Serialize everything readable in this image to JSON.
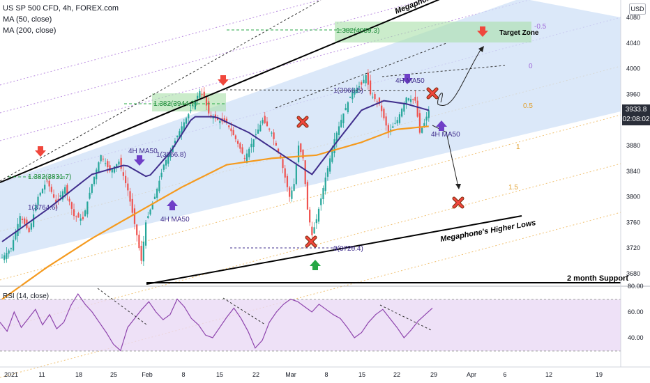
{
  "header": {
    "symbol_line": "US SP 500 CFD, 4h, FOREX.com",
    "ma50_label": "MA (50, close)",
    "ma200_label": "MA (200, close)",
    "currency": "USD"
  },
  "price_tag": {
    "price": "3933.8",
    "countdown": "02:08:02"
  },
  "colors": {
    "candle_up": "#26a69a",
    "candle_down": "#ef5350",
    "ma50": "#3f2d8c",
    "ma200": "#f59a1e",
    "channel_fill": "#cfe0f7",
    "target_zone": "#a9e0a9",
    "rsi_line": "#8e44ad",
    "rsi_band": "#ead9f5",
    "arrow_red": "#f0473c",
    "arrow_purple": "#6f3fc7",
    "arrow_green": "#27a745"
  },
  "chart_data": {
    "type": "candlestick",
    "title": "US SP 500 CFD, 4h, FOREX.com",
    "yaxis": {
      "ticks": [
        3680,
        3720,
        3760,
        3800,
        3840,
        3880,
        3920,
        3960,
        4000,
        4040,
        4080
      ],
      "range": [
        3660,
        4100
      ],
      "unit": "USD"
    },
    "xaxis": {
      "ticks": [
        "2021",
        "11",
        "18",
        "25",
        "Feb",
        "8",
        "15",
        "22",
        "Mar",
        "8",
        "15",
        "22",
        "29",
        "Apr",
        "6",
        "12",
        "19"
      ]
    },
    "price_path": [
      [
        0,
        3705
      ],
      [
        4,
        3720
      ],
      [
        8,
        3770
      ],
      [
        12,
        3745
      ],
      [
        16,
        3800
      ],
      [
        20,
        3825
      ],
      [
        24,
        3790
      ],
      [
        28,
        3815
      ],
      [
        32,
        3770
      ],
      [
        36,
        3765
      ],
      [
        40,
        3820
      ],
      [
        44,
        3865
      ],
      [
        48,
        3840
      ],
      [
        52,
        3855
      ],
      [
        56,
        3810
      ],
      [
        60,
        3740
      ],
      [
        62,
        3700
      ],
      [
        64,
        3760
      ],
      [
        68,
        3800
      ],
      [
        72,
        3850
      ],
      [
        76,
        3880
      ],
      [
        80,
        3910
      ],
      [
        84,
        3935
      ],
      [
        88,
        3965
      ],
      [
        90,
        3955
      ],
      [
        92,
        3930
      ],
      [
        96,
        3920
      ],
      [
        100,
        3915
      ],
      [
        104,
        3890
      ],
      [
        108,
        3860
      ],
      [
        112,
        3890
      ],
      [
        116,
        3920
      ],
      [
        120,
        3900
      ],
      [
        124,
        3860
      ],
      [
        128,
        3800
      ],
      [
        130,
        3820
      ],
      [
        132,
        3880
      ],
      [
        134,
        3860
      ],
      [
        136,
        3780
      ],
      [
        138,
        3740
      ],
      [
        140,
        3765
      ],
      [
        144,
        3830
      ],
      [
        148,
        3890
      ],
      [
        152,
        3930
      ],
      [
        156,
        3965
      ],
      [
        160,
        3975
      ],
      [
        162,
        3990
      ],
      [
        164,
        3960
      ],
      [
        168,
        3945
      ],
      [
        172,
        3900
      ],
      [
        176,
        3920
      ],
      [
        180,
        3955
      ],
      [
        184,
        3950
      ],
      [
        186,
        3900
      ],
      [
        188,
        3915
      ],
      [
        190,
        3935
      ]
    ],
    "ma50": [
      [
        0,
        3730
      ],
      [
        20,
        3780
      ],
      [
        40,
        3835
      ],
      [
        55,
        3850
      ],
      [
        65,
        3830
      ],
      [
        75,
        3870
      ],
      [
        85,
        3925
      ],
      [
        95,
        3925
      ],
      [
        110,
        3900
      ],
      [
        125,
        3865
      ],
      [
        138,
        3835
      ],
      [
        150,
        3890
      ],
      [
        160,
        3935
      ],
      [
        170,
        3950
      ],
      [
        180,
        3945
      ],
      [
        190,
        3935
      ]
    ],
    "ma200": [
      [
        0,
        3640
      ],
      [
        20,
        3690
      ],
      [
        40,
        3735
      ],
      [
        60,
        3775
      ],
      [
        80,
        3815
      ],
      [
        100,
        3850
      ],
      [
        120,
        3860
      ],
      [
        140,
        3865
      ],
      [
        160,
        3885
      ],
      [
        175,
        3905
      ],
      [
        190,
        3910
      ]
    ],
    "rsi": {
      "range": [
        20,
        80
      ],
      "ticks": [
        40,
        60,
        80
      ],
      "band": [
        30,
        70
      ],
      "values": [
        52,
        45,
        60,
        48,
        55,
        62,
        50,
        58,
        47,
        52,
        65,
        74,
        66,
        60,
        52,
        44,
        35,
        30,
        48,
        55,
        62,
        68,
        60,
        54,
        58,
        70,
        64,
        55,
        50,
        42,
        40,
        48,
        56,
        63,
        55,
        45,
        32,
        38,
        52,
        60,
        66,
        70,
        68,
        64,
        60,
        66,
        62,
        58,
        55,
        48,
        40,
        44,
        52,
        58,
        62,
        55,
        48,
        40,
        46,
        53,
        58,
        63
      ]
    },
    "annotations": [
      {
        "text": "Megaphone's Higher Highs"
      },
      {
        "text": "Megaphone's Higher Lows"
      },
      {
        "text": "Target Zone"
      },
      {
        "text": "2 month Support"
      },
      {
        "text": "1.382(4059.3)"
      },
      {
        "text": "1.382(3944.7)"
      },
      {
        "text": "1.382(3831.7)"
      },
      {
        "text": "1(3966.5)"
      },
      {
        "text": "1(3866.8)"
      },
      {
        "text": "1(3764.6)"
      },
      {
        "text": "0(3720.4)"
      },
      {
        "text": "4H MA50"
      },
      {
        "text": "RSI (14, close)"
      },
      {
        "text": "0.5"
      },
      {
        "text": "0"
      },
      {
        "text": "1"
      },
      {
        "text": "1.5"
      },
      {
        "text": "-0.5"
      }
    ]
  }
}
